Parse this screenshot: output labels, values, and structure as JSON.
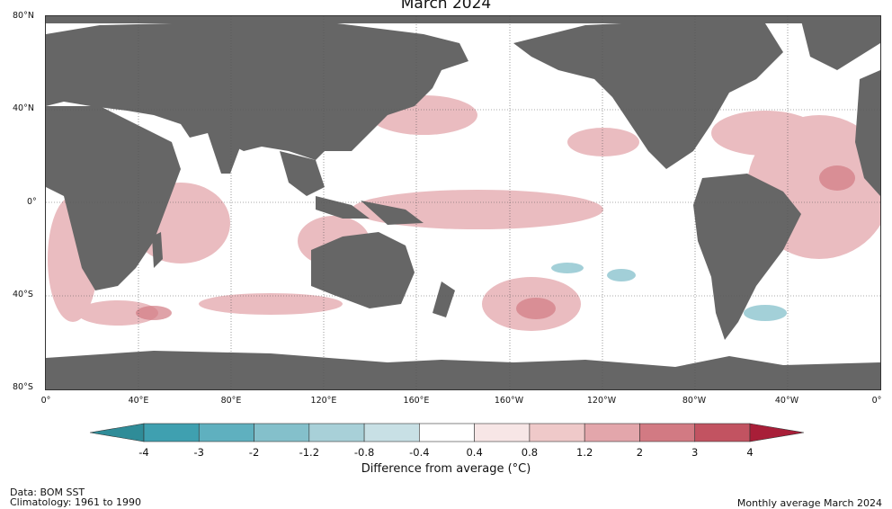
{
  "map": {
    "title": "March 2024",
    "lat_labels": [
      "80°N",
      "40°N",
      "0°",
      "40°S",
      "80°S"
    ],
    "lon_labels": [
      "0°",
      "40°E",
      "80°E",
      "120°E",
      "160°E",
      "160°W",
      "120°W",
      "80°W",
      "40°W",
      "0°"
    ],
    "land_color": "#666666",
    "ocean_color": "#ffffff",
    "grid": true
  },
  "colorbar": {
    "label": "Difference from average (°C)",
    "ticks": [
      "-4",
      "-3",
      "-2",
      "-1.2",
      "-0.8",
      "-0.4",
      "0.4",
      "0.8",
      "1.2",
      "2",
      "3",
      "4"
    ],
    "colors": [
      "#2f8c98",
      "#3fa0b0",
      "#5fb0bf",
      "#84c0cb",
      "#a8d0d8",
      "#c8e0e5",
      "#ffffff",
      "#f7e6e6",
      "#efc9c9",
      "#e3a6ab",
      "#d27a83",
      "#c25361",
      "#a81e38"
    ]
  },
  "footer": {
    "source": "Data: BOM SST",
    "climatology": "Climatology: 1961 to 1990",
    "product": "Monthly average March 2024"
  }
}
